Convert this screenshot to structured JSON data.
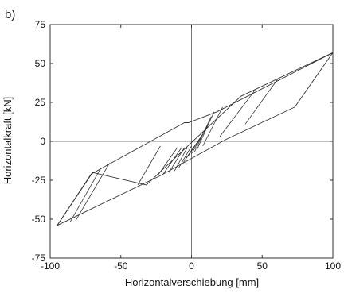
{
  "chart_data": {
    "type": "line",
    "panel_label": "b)",
    "title": "",
    "xlabel": "Horizontalverschiebung [mm]",
    "ylabel": "Horizontalkraft [kN]",
    "xlim": [
      -100,
      100
    ],
    "ylim": [
      -75,
      75
    ],
    "xticks": [
      -100,
      -50,
      0,
      50,
      100
    ],
    "yticks": [
      -75,
      -50,
      -25,
      0,
      25,
      50,
      75
    ],
    "grid": false,
    "zero_lines": true,
    "line_color": "#333333",
    "series": [
      {
        "points": [
          [
            -95,
            -54
          ],
          [
            -22,
            -22
          ],
          [
            24,
            1
          ],
          [
            73,
            22
          ],
          [
            100,
            57
          ],
          [
            35,
            29
          ],
          [
            -32,
            -28
          ],
          [
            -70,
            -20
          ],
          [
            -95,
            -54
          ]
        ]
      },
      {
        "points": [
          [
            -95,
            -54
          ],
          [
            -71,
            -21
          ],
          [
            -55,
            -13
          ],
          [
            -5,
            12
          ],
          [
            -2,
            12
          ],
          [
            18,
            19
          ],
          [
            100,
            57
          ]
        ]
      }
    ],
    "segments": [
      [
        [
          -86,
          -52
        ],
        [
          -64,
          -17
        ]
      ],
      [
        [
          -82,
          -51
        ],
        [
          -58,
          -14
        ]
      ],
      [
        [
          -38,
          -28
        ],
        [
          -22,
          -3
        ]
      ],
      [
        [
          -24,
          -22
        ],
        [
          -10,
          -4
        ]
      ],
      [
        [
          -20,
          -21
        ],
        [
          -7,
          -4
        ]
      ],
      [
        [
          -16,
          -20
        ],
        [
          -5,
          -4
        ]
      ],
      [
        [
          -12,
          -19
        ],
        [
          -3,
          -4
        ]
      ],
      [
        [
          -9,
          -17
        ],
        [
          0,
          -3
        ]
      ],
      [
        [
          -6,
          -14
        ],
        [
          3,
          -2
        ]
      ],
      [
        [
          -4,
          -11
        ],
        [
          6,
          2
        ]
      ],
      [
        [
          -2,
          -9
        ],
        [
          9,
          6
        ]
      ],
      [
        [
          0,
          -8
        ],
        [
          12,
          11
        ]
      ],
      [
        [
          2,
          -7
        ],
        [
          14,
          16
        ]
      ],
      [
        [
          4,
          -5
        ],
        [
          16,
          19
        ]
      ],
      [
        [
          8,
          -3
        ],
        [
          22,
          22
        ]
      ],
      [
        [
          20,
          3
        ],
        [
          45,
          33
        ]
      ],
      [
        [
          38,
          11
        ],
        [
          61,
          40
        ]
      ]
    ]
  }
}
